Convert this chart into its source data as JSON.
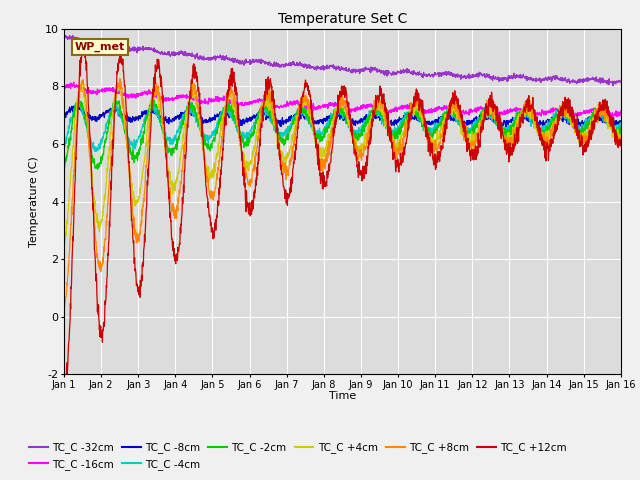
{
  "title": "Temperature Set C",
  "xlabel": "Time",
  "ylabel": "Temperature (C)",
  "ylim": [
    -2,
    10
  ],
  "xlim": [
    0,
    15
  ],
  "xtick_labels": [
    "Jan 1",
    "Jan 2",
    "Jan 3",
    "Jan 4",
    "Jan 5",
    "Jan 6",
    "Jan 7",
    "Jan 8",
    "Jan 9",
    "Jan 10",
    "Jan 11",
    "Jan 12",
    "Jan 13",
    "Jan 14",
    "Jan 15",
    "Jan 16"
  ],
  "annotation_text": "WP_met",
  "series": [
    {
      "label": "TC_C -32cm",
      "color": "#9933cc"
    },
    {
      "label": "TC_C -16cm",
      "color": "#ff00ff"
    },
    {
      "label": "TC_C -8cm",
      "color": "#0000cc"
    },
    {
      "label": "TC_C -4cm",
      "color": "#00cccc"
    },
    {
      "label": "TC_C -2cm",
      "color": "#00cc00"
    },
    {
      "label": "TC_C +4cm",
      "color": "#cccc00"
    },
    {
      "label": "TC_C +8cm",
      "color": "#ff8800"
    },
    {
      "label": "TC_C +12cm",
      "color": "#cc0000"
    }
  ],
  "background_color": "#dcdcdc"
}
